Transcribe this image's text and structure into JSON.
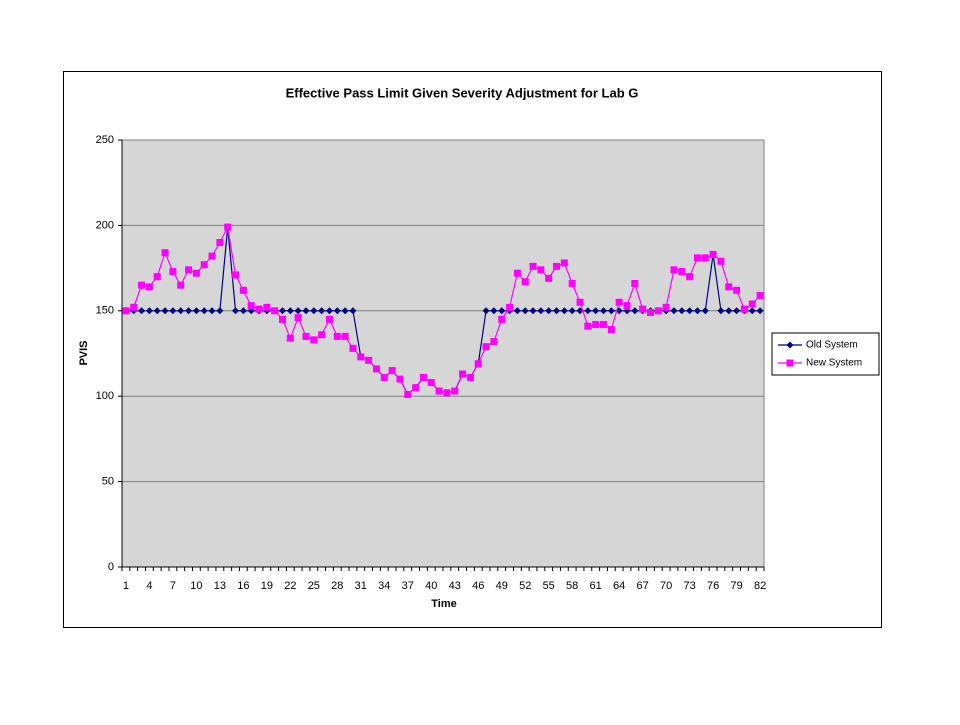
{
  "chart_data": {
    "type": "line",
    "title": "Effective Pass Limit Given Severity Adjustment for Lab G",
    "x_label": "Time",
    "y_label": "PVIS",
    "categories": [
      1,
      null,
      null,
      4,
      null,
      null,
      7,
      null,
      null,
      10,
      null,
      null,
      13,
      null,
      null,
      16,
      null,
      null,
      19,
      null,
      null,
      22,
      null,
      null,
      25,
      null,
      null,
      28,
      null,
      null,
      31,
      null,
      null,
      34,
      null,
      null,
      37,
      null,
      null,
      40,
      null,
      null,
      43,
      null,
      null,
      46,
      null,
      null,
      49,
      null,
      null,
      52,
      null,
      null,
      55,
      null,
      null,
      58,
      null,
      null,
      61,
      null,
      null,
      64,
      null,
      null,
      67,
      null,
      null,
      70,
      null,
      null,
      73,
      null,
      null,
      76,
      null,
      null,
      79,
      null,
      null,
      82
    ],
    "series": [
      {
        "name": "Old System",
        "color": "#000080",
        "marker": "diamond",
        "values": [
          150,
          150,
          150,
          150,
          150,
          150,
          150,
          150,
          150,
          150,
          150,
          150,
          150,
          199,
          150,
          150,
          150,
          150,
          150,
          150,
          150,
          150,
          150,
          150,
          150,
          150,
          150,
          150,
          150,
          150,
          123,
          121,
          116,
          111,
          115,
          110,
          101,
          105,
          111,
          108,
          103,
          102,
          103,
          113,
          111,
          119,
          150,
          150,
          150,
          150,
          150,
          150,
          150,
          150,
          150,
          150,
          150,
          150,
          150,
          150,
          150,
          150,
          150,
          150,
          150,
          150,
          150,
          150,
          150,
          150,
          150,
          150,
          150,
          150,
          150,
          183,
          150,
          150,
          150,
          150,
          150,
          150
        ]
      },
      {
        "name": "New System",
        "color": "#ff00ff",
        "marker": "square",
        "values": [
          150,
          152,
          165,
          164,
          170,
          184,
          173,
          165,
          174,
          172,
          177,
          182,
          190,
          199,
          171,
          162,
          153,
          151,
          152,
          150,
          145,
          134,
          146,
          135,
          133,
          136,
          145,
          135,
          135,
          128,
          123,
          121,
          116,
          111,
          115,
          110,
          101,
          105,
          111,
          108,
          103,
          102,
          103,
          113,
          111,
          119,
          129,
          132,
          145,
          152,
          172,
          167,
          176,
          174,
          169,
          176,
          178,
          166,
          155,
          141,
          142,
          142,
          139,
          155,
          153,
          166,
          151,
          149,
          150,
          152,
          174,
          173,
          170,
          181,
          181,
          183,
          179,
          164,
          162,
          151,
          154,
          159
        ]
      }
    ],
    "ylim": [
      0,
      250
    ],
    "yticks": [
      0,
      50,
      100,
      150,
      200,
      250
    ],
    "grid": true,
    "plot_background": "#d6d6d6",
    "legend": "right"
  }
}
